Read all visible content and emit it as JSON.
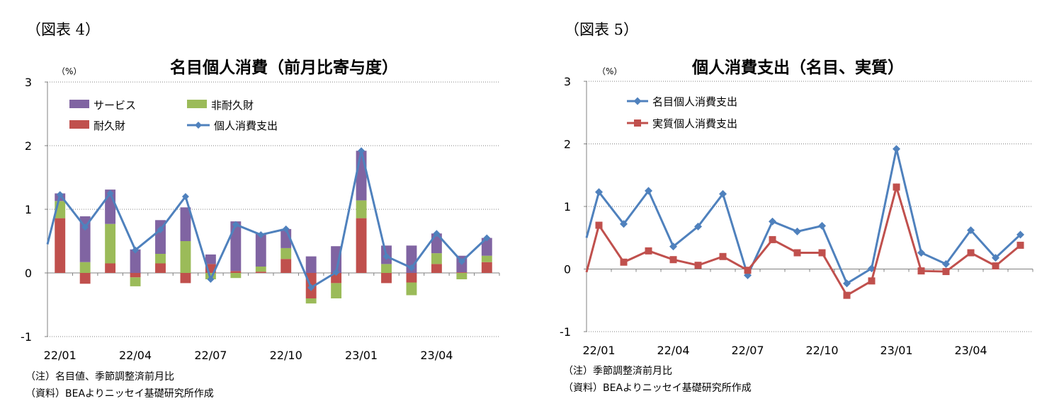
{
  "left": {
    "figure_label": "（図表 4）",
    "unit": "（%）",
    "note": "（注）名目値、季節調整済前月比",
    "source": "（資料）BEAよりニッセイ基礎研究所作成"
  },
  "right": {
    "figure_label": "（図表 5）",
    "unit": "（%）",
    "note": "（注）季節調整済前月比",
    "source": "（資料）BEAよりニッセイ基礎研究所作成"
  },
  "chart_data": [
    {
      "type": "bar",
      "stacked": true,
      "title": "名目個人消費（前月比寄与度）",
      "ylabel": "",
      "ylim": [
        -1,
        3
      ],
      "yticks": [
        -1,
        0,
        1,
        2,
        3
      ],
      "categories": [
        "22/01",
        "22/02",
        "22/03",
        "22/04",
        "22/05",
        "22/06",
        "22/07",
        "22/08",
        "22/09",
        "22/10",
        "22/11",
        "22/12",
        "23/01",
        "23/02",
        "23/03",
        "23/04",
        "23/05",
        "23/06"
      ],
      "tick_labels": [
        "22/01",
        "22/04",
        "22/07",
        "22/10",
        "23/01",
        "23/04"
      ],
      "grid": "horizontal-dotted",
      "legend": "top-left",
      "series": [
        {
          "name": "耐久財",
          "color": "#c0504d",
          "values": [
            0.86,
            -0.17,
            0.15,
            -0.07,
            0.15,
            -0.16,
            0.14,
            0.03,
            0.02,
            0.22,
            -0.4,
            -0.16,
            0.86,
            -0.16,
            -0.15,
            0.14,
            0.01,
            0.17
          ]
        },
        {
          "name": "非耐久財",
          "color": "#9bbb59",
          "values": [
            0.27,
            0.17,
            0.62,
            -0.14,
            0.15,
            0.5,
            -0.1,
            -0.08,
            0.08,
            0.17,
            -0.08,
            -0.24,
            0.28,
            0.14,
            -0.2,
            0.17,
            -0.1,
            0.1
          ]
        },
        {
          "name": "サービス",
          "color": "#8064a2",
          "values": [
            0.12,
            0.72,
            0.54,
            0.37,
            0.53,
            0.53,
            0.15,
            0.78,
            0.52,
            0.3,
            0.26,
            0.42,
            0.78,
            0.29,
            0.43,
            0.31,
            0.26,
            0.28
          ]
        }
      ],
      "line": {
        "name": "個人消費支出",
        "color": "#4f81bd",
        "lead_in": 0.45,
        "values": [
          1.23,
          0.72,
          1.25,
          0.36,
          0.68,
          1.2,
          -0.1,
          0.76,
          0.6,
          0.69,
          -0.23,
          0.01,
          1.92,
          0.26,
          0.08,
          0.62,
          0.18,
          0.55
        ]
      }
    },
    {
      "type": "line",
      "title": "個人消費支出（名目、実質）",
      "ylabel": "",
      "ylim": [
        -1,
        3
      ],
      "yticks": [
        -1,
        0,
        1,
        2,
        3
      ],
      "categories": [
        "22/01",
        "22/02",
        "22/03",
        "22/04",
        "22/05",
        "22/06",
        "22/07",
        "22/08",
        "22/09",
        "22/10",
        "22/11",
        "22/12",
        "23/01",
        "23/02",
        "23/03",
        "23/04",
        "23/05",
        "23/06"
      ],
      "tick_labels": [
        "22/01",
        "22/04",
        "22/07",
        "22/10",
        "23/01",
        "23/04"
      ],
      "grid": "horizontal-dotted",
      "legend": "top-left",
      "series": [
        {
          "name": "名目個人消費支出",
          "color": "#4f81bd",
          "marker": "diamond",
          "lead_in": 0.5,
          "values": [
            1.23,
            0.72,
            1.25,
            0.36,
            0.68,
            1.2,
            -0.1,
            0.76,
            0.6,
            0.69,
            -0.23,
            0.01,
            1.92,
            0.26,
            0.08,
            0.62,
            0.18,
            0.55
          ]
        },
        {
          "name": "実質個人消費支出",
          "color": "#c0504d",
          "marker": "square",
          "lead_in": -0.05,
          "values": [
            0.7,
            0.11,
            0.29,
            0.15,
            0.06,
            0.2,
            -0.02,
            0.47,
            0.26,
            0.26,
            -0.42,
            -0.19,
            1.31,
            -0.03,
            -0.04,
            0.26,
            0.05,
            0.38
          ]
        }
      ]
    }
  ]
}
